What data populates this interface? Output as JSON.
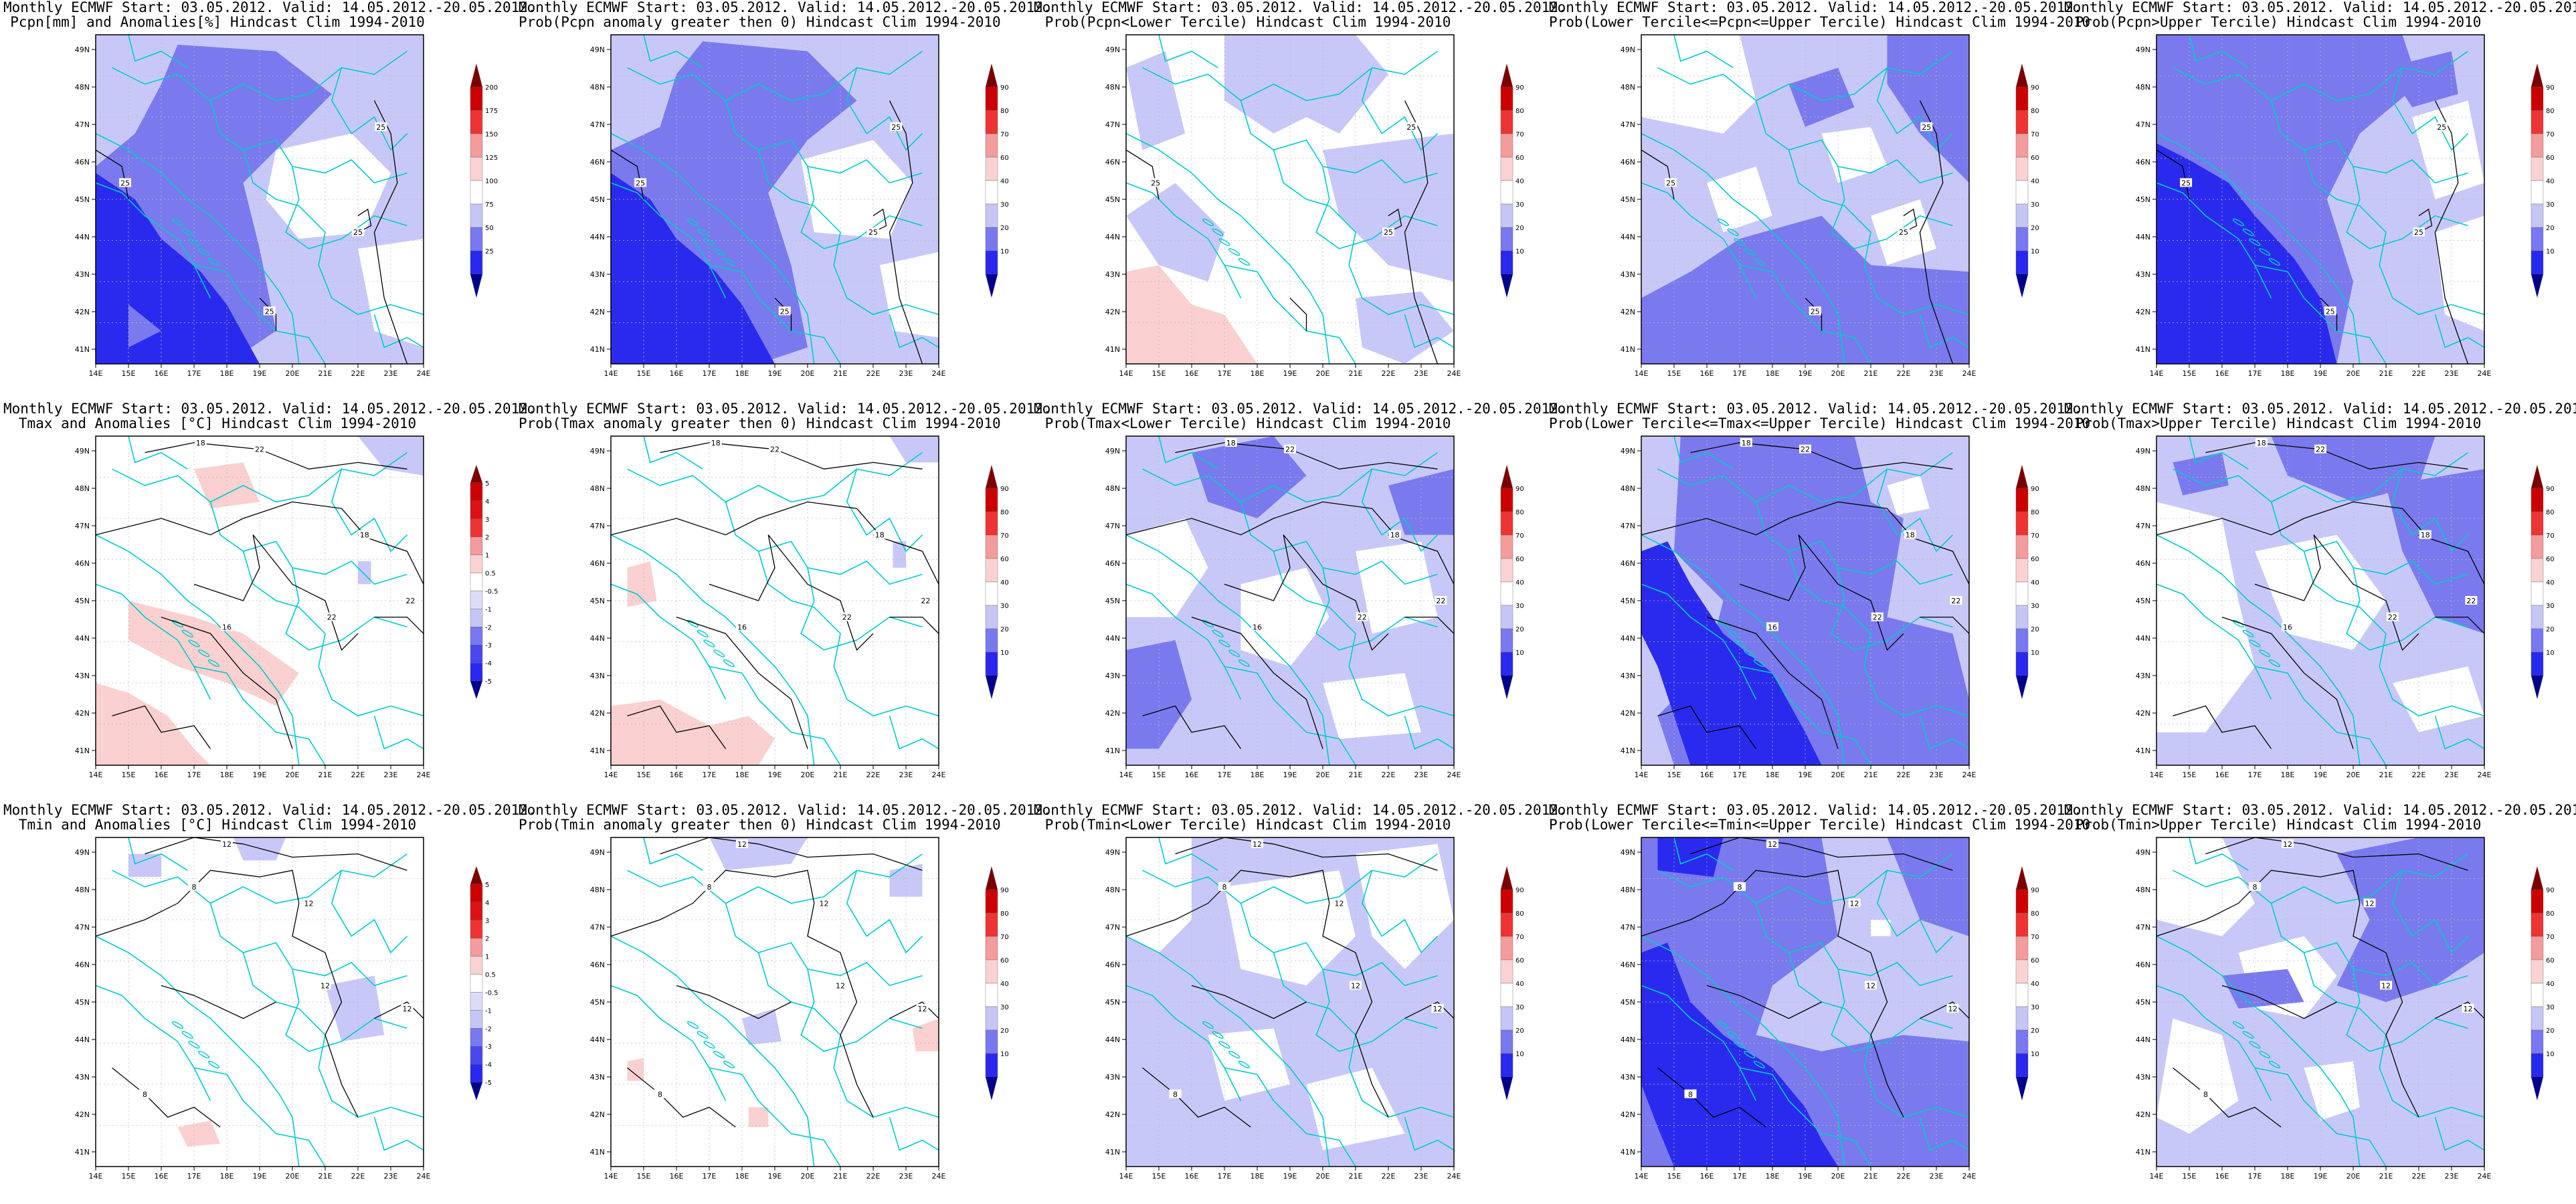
{
  "figure": {
    "panels": [
      {
        "line1": "Monthly ECMWF Start: 03.05.2012. Valid: 14.05.2012.-20.05.2012.",
        "line2": "Pcpn[mm] and Anomalies[%] Hindcast Clim 1994-2010",
        "scale": "anom_pcp",
        "pattern": "pcp_anom",
        "contours": [
          "25",
          "25",
          "25",
          "25"
        ]
      },
      {
        "line1": "Monthly ECMWF Start: 03.05.2012. Valid: 14.05.2012.-20.05.2012.",
        "line2": "Prob(Pcpn anomaly greater then 0) Hindcast Clim 1994-2010",
        "scale": "prob",
        "pattern": "pcp_gt0",
        "contours": [
          "25",
          "25",
          "25",
          "25"
        ]
      },
      {
        "line1": "Monthly ECMWF Start: 03.05.2012. Valid: 14.05.2012.-20.05.2012.",
        "line2": "Prob(Pcpn<Lower Tercile) Hindcast Clim 1994-2010",
        "scale": "prob",
        "pattern": "pcp_low",
        "contours": [
          "25",
          "25",
          "25"
        ]
      },
      {
        "line1": "Monthly ECMWF Start: 03.05.2012. Valid: 14.05.2012.-20.05.2012.",
        "line2": "Prob(Lower Tercile<=Pcpn<=Upper Tercile) Hindcast Clim 1994-2010",
        "scale": "prob",
        "pattern": "pcp_mid",
        "contours": [
          "25",
          "25",
          "25",
          "25"
        ]
      },
      {
        "line1": "Monthly ECMWF Start: 03.05.2012. Valid: 14.05.2012.-20.05.2012.",
        "line2": "Prob(Pcpn>Upper Tercile) Hindcast Clim 1994-2010",
        "scale": "prob",
        "pattern": "pcp_up",
        "contours": [
          "25",
          "25",
          "25",
          "25"
        ]
      },
      {
        "line1": "Monthly ECMWF Start: 03.05.2012. Valid: 14.05.2012.-20.05.2012.",
        "line2": "Tmax and Anomalies [°C] Hindcast Clim 1994-2010",
        "scale": "anom_t",
        "pattern": "tmax_anom",
        "contours": [
          "18",
          "22",
          "18",
          "16",
          "22",
          "22"
        ]
      },
      {
        "line1": "Monthly ECMWF Start: 03.05.2012. Valid: 14.05.2012.-20.05.2012.",
        "line2": "Prob(Tmax anomaly greater then 0) Hindcast Clim 1994-2010",
        "scale": "prob",
        "pattern": "tmax_gt0",
        "contours": [
          "18",
          "22",
          "18",
          "16",
          "22",
          "22"
        ]
      },
      {
        "line1": "Monthly ECMWF Start: 03.05.2012. Valid: 14.05.2012.-20.05.2012.",
        "line2": "Prob(Tmax<Lower Tercile) Hindcast Clim 1994-2010",
        "scale": "prob",
        "pattern": "tmax_low",
        "contours": [
          "18",
          "22",
          "18",
          "16",
          "22",
          "22"
        ]
      },
      {
        "line1": "Monthly ECMWF Start: 03.05.2012. Valid: 14.05.2012.-20.05.2012.",
        "line2": "Prob(Lower Tercile<=Tmax<=Upper Tercile) Hindcast Clim 1994-2010",
        "scale": "prob",
        "pattern": "tmax_mid",
        "contours": [
          "18",
          "22",
          "18",
          "16",
          "22",
          "22"
        ]
      },
      {
        "line1": "Monthly ECMWF Start: 03.05.2012. Valid: 14.05.2012.-20.05.2012.",
        "line2": "Prob(Tmax>Upper Tercile) Hindcast Clim 1994-2010",
        "scale": "prob",
        "pattern": "tmax_up",
        "contours": [
          "18",
          "22",
          "18",
          "16",
          "22",
          "22"
        ]
      },
      {
        "line1": "Monthly ECMWF Start: 03.05.2012. Valid: 14.05.2012.-20.05.2012.",
        "line2": "Tmin and Anomalies [°C] Hindcast Clim 1994-2010",
        "scale": "anom_t",
        "pattern": "tmin_anom",
        "contours": [
          "12",
          "8",
          "12",
          "12",
          "8",
          "12"
        ]
      },
      {
        "line1": "Monthly ECMWF Start: 03.05.2012. Valid: 14.05.2012.-20.05.2012.",
        "line2": "Prob(Tmin anomaly greater then 0) Hindcast Clim 1994-2010",
        "scale": "prob",
        "pattern": "tmin_gt0",
        "contours": [
          "12",
          "8",
          "12",
          "12",
          "8",
          "12"
        ]
      },
      {
        "line1": "Monthly ECMWF Start: 03.05.2012. Valid: 14.05.2012.-20.05.2012.",
        "line2": "Prob(Tmin<Lower Tercile) Hindcast Clim 1994-2010",
        "scale": "prob",
        "pattern": "tmin_low",
        "contours": [
          "12",
          "8",
          "12",
          "12",
          "8",
          "12"
        ]
      },
      {
        "line1": "Monthly ECMWF Start: 03.05.2012. Valid: 14.05.2012.-20.05.2012.",
        "line2": "Prob(Lower Tercile<=Tmin<=Upper Tercile) Hindcast Clim 1994-2010",
        "scale": "prob",
        "pattern": "tmin_mid",
        "contours": [
          "12",
          "8",
          "12",
          "12",
          "8",
          "12"
        ]
      },
      {
        "line1": "Monthly ECMWF Start: 03.05.2012. Valid: 14.05.2012.-20.05.2012.",
        "line2": "Prob(Tmin>Upper Tercile) Hindcast Clim 1994-2010",
        "scale": "prob",
        "pattern": "tmin_up",
        "contours": [
          "12",
          "8",
          "12",
          "12",
          "8",
          "12"
        ]
      }
    ],
    "lon_ticks": [
      "14E",
      "15E",
      "16E",
      "17E",
      "18E",
      "19E",
      "20E",
      "21E",
      "22E",
      "23E",
      "24E"
    ],
    "lat_ticks": [
      "49N",
      "48N",
      "47N",
      "46N",
      "45N",
      "44N",
      "43N",
      "42N",
      "41N"
    ],
    "scales": {
      "prob": {
        "labels": [
          "90",
          "80",
          "70",
          "60",
          "40",
          "30",
          "20",
          "10"
        ],
        "colors": [
          "#7a0000",
          "#cc0000",
          "#ee3333",
          "#f49b9b",
          "#fbd2d2",
          "#ffffff",
          "#c6c6f6",
          "#7878f0",
          "#2828ee",
          "#00008a"
        ]
      },
      "anom_pcp": {
        "labels": [
          "200",
          "175",
          "150",
          "125",
          "100",
          "75",
          "50",
          "25"
        ],
        "colors": [
          "#7a0000",
          "#cc0000",
          "#ee3333",
          "#f49b9b",
          "#fbd2d2",
          "#ffffff",
          "#c6c6f6",
          "#7878f0",
          "#2828ee",
          "#00008a"
        ]
      },
      "anom_t": {
        "labels": [
          "5",
          "4",
          "3",
          "2",
          "1",
          "0.5",
          "-0.5",
          "-1",
          "-2",
          "-3",
          "-4",
          "-5"
        ],
        "colors": [
          "#7a0000",
          "#cc0000",
          "#dd1111",
          "#ee3333",
          "#f49b9b",
          "#fbd2d2",
          "#ffffff",
          "#dcdcf8",
          "#c6c6f6",
          "#7878f0",
          "#4848ee",
          "#2828ee",
          "#00008a"
        ]
      }
    },
    "colors": {
      "coast": "#00cccc",
      "contour": "#000000",
      "lightBlue": "#c8c8f8",
      "midBlue": "#7a7aee",
      "darkBlue": "#2a2aee",
      "lightRed": "#fbd0d0"
    }
  }
}
